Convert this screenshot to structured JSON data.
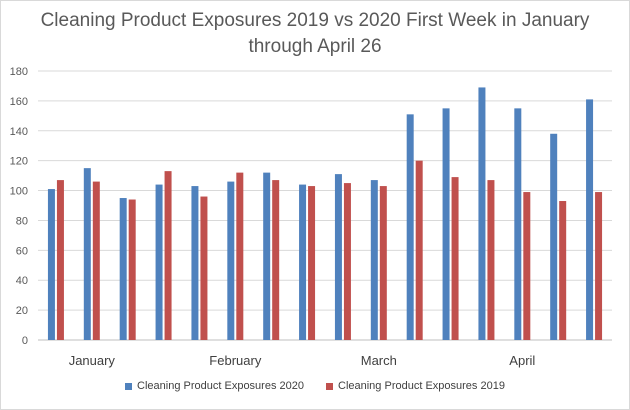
{
  "chart_data": {
    "type": "bar",
    "title": "Cleaning Product Exposures 2019 vs 2020 First Week in January through April 26",
    "title_lines": [
      "Cleaning Product Exposures 2019 vs 2020 First Week in January",
      "through April 26"
    ],
    "xlabel": "",
    "ylabel": "",
    "ylim": [
      0,
      180
    ],
    "yticks": [
      0,
      20,
      40,
      60,
      80,
      100,
      120,
      140,
      160,
      180
    ],
    "grid": true,
    "legend_position": "bottom",
    "month_labels": [
      {
        "label": "January",
        "center_index": 1
      },
      {
        "label": "February",
        "center_index": 5
      },
      {
        "label": "March",
        "center_index": 9
      },
      {
        "label": "April",
        "center_index": 13
      }
    ],
    "weeks": 16,
    "series": [
      {
        "name": "Cleaning Product Exposures  2020",
        "color": "#4f81bd",
        "values": [
          101,
          115,
          95,
          104,
          103,
          106,
          112,
          104,
          111,
          107,
          151,
          155,
          169,
          155,
          138,
          161
        ]
      },
      {
        "name": "Cleaning Product Exposures  2019",
        "color": "#c0504d",
        "values": [
          107,
          106,
          94,
          113,
          96,
          112,
          107,
          103,
          105,
          103,
          120,
          109,
          107,
          99,
          93,
          99
        ]
      }
    ]
  }
}
